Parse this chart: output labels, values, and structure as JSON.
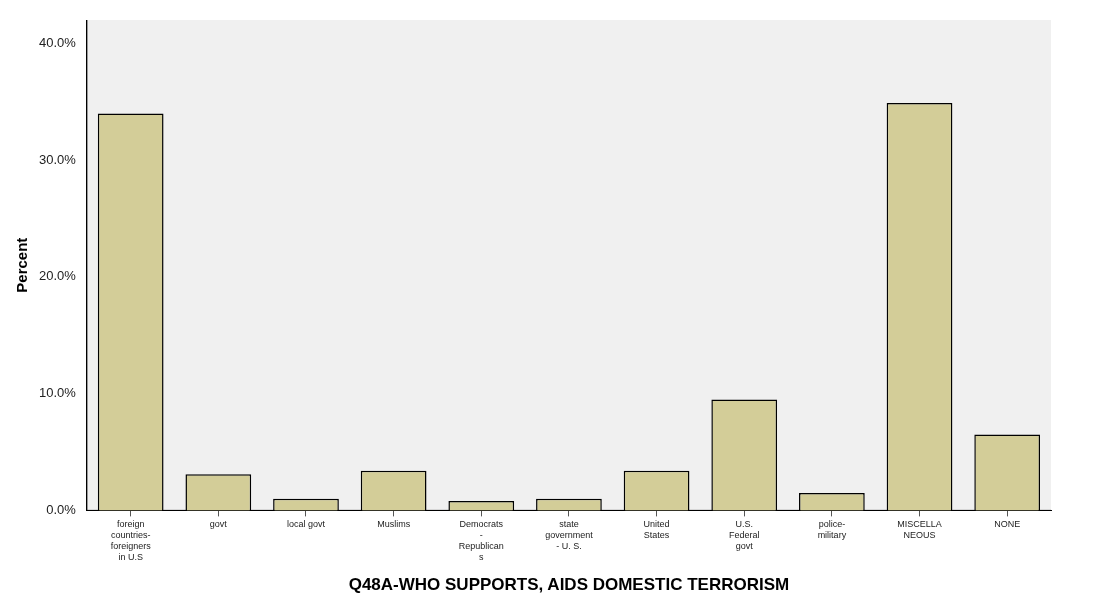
{
  "chart_data": {
    "type": "bar",
    "xlabel": "Q48A-WHO SUPPORTS, AIDS DOMESTIC TERRORISM",
    "ylabel": "Percent",
    "categories": [
      "foreign\ncountries-\nforeigners\nin U.S",
      "govt",
      "local govt",
      "Muslims",
      "Democrats\n-\nRepublican\ns",
      "state\ngovernment\n- U. S.",
      "United\nStates",
      "U.S.\nFederal\ngovt",
      "police-\nmilitary",
      "MISCELLA\nNEOUS",
      "NONE"
    ],
    "values": [
      34.0,
      3.1,
      1.0,
      3.4,
      0.8,
      1.0,
      3.4,
      9.5,
      1.5,
      34.9,
      6.5
    ],
    "color": "#d3cd98",
    "ylim": [
      0,
      42
    ],
    "yticks": [
      {
        "value": 0,
        "label": "0.0%"
      },
      {
        "value": 10,
        "label": "10.0%"
      },
      {
        "value": 20,
        "label": "20.0%"
      },
      {
        "value": 30,
        "label": "30.0%"
      },
      {
        "value": 40,
        "label": "40.0%"
      }
    ],
    "grid": false,
    "legend": false
  }
}
